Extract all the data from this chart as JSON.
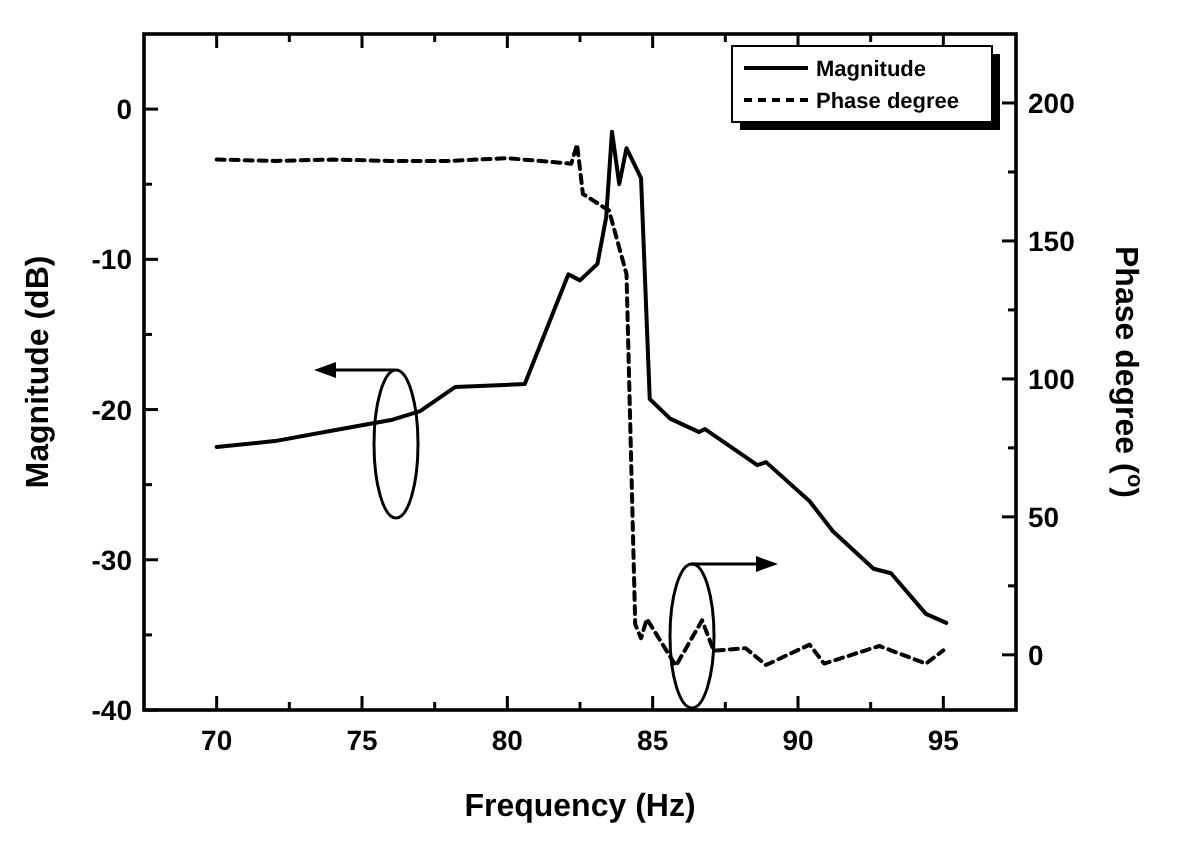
{
  "chart_data": {
    "type": "line",
    "xlabel": "Frequency (Hz)",
    "ylabel": "Magnitude (dB)",
    "y2label": "Phase degree ($^{o}$)",
    "xlim": [
      67.5,
      97.5
    ],
    "xticks": [
      70,
      {
        "value": 72.5,
        "label": null
      },
      75,
      {
        "value": 77.5,
        "label": null
      },
      80,
      {
        "value": 82.5,
        "label": null
      },
      85,
      {
        "value": 87.5,
        "label": null
      },
      90,
      {
        "value": 92.5,
        "label": null
      },
      95
    ],
    "ylim": [
      -40,
      5
    ],
    "yticks": [
      -40,
      {
        "value": -35,
        "label": null
      },
      -30,
      {
        "value": -25,
        "label": null
      },
      -20,
      {
        "value": -15,
        "label": null
      },
      -10,
      {
        "value": -5,
        "label": null
      },
      0
    ],
    "y2lim": [
      -20,
      225
    ],
    "y2ticks": [
      0,
      {
        "value": 25,
        "label": null
      },
      50,
      {
        "value": 75,
        "label": null
      },
      100,
      {
        "value": 125,
        "label": null
      },
      150,
      {
        "value": 175,
        "label": null
      },
      200
    ],
    "legend": "top right",
    "grid": false,
    "series": [
      {
        "name": "Magnitude",
        "color": "#000000",
        "line_style": "solid",
        "x": [
          70,
          72,
          74,
          76,
          77,
          78.2,
          80.6,
          82.1,
          82.5,
          83.1,
          83.4,
          83.6,
          83.85,
          84.1,
          84.6,
          84.9,
          85.6,
          86.6,
          86.8,
          88.6,
          88.9,
          90.4,
          91.2,
          92.6,
          93.2,
          94.4,
          95.1
        ],
        "values": [
          -22.5,
          -22.1,
          -21.4,
          -20.7,
          -20.1,
          -18.5,
          -18.3,
          -11,
          -11.4,
          -10.3,
          -7.2,
          -1.5,
          -5,
          -2.6,
          -4.6,
          -19.3,
          -20.6,
          -21.5,
          -21.3,
          -23.7,
          -23.5,
          -26.1,
          -28.1,
          -30.6,
          -30.9,
          -33.6,
          -34.2
        ]
      },
      {
        "name": "Phase degree",
        "color": "#000000",
        "line_style": "dashed",
        "axis": "y2",
        "x": [
          70,
          72,
          74,
          76,
          78,
          80,
          82.2,
          82.4,
          82.6,
          83.5,
          84.1,
          84.4,
          84.6,
          84.8,
          85.8,
          86.7,
          87.1,
          88.2,
          88.9,
          90.4,
          90.9,
          92.8,
          94.4,
          95
        ],
        "values": [
          179.5,
          179,
          179.5,
          179,
          179,
          180,
          178,
          185,
          167,
          161,
          138,
          11,
          6,
          13,
          -4,
          12.5,
          1.5,
          2.4,
          -3.7,
          3.7,
          -3.2,
          3.2,
          -3.2,
          1.6
        ]
      }
    ]
  }
}
